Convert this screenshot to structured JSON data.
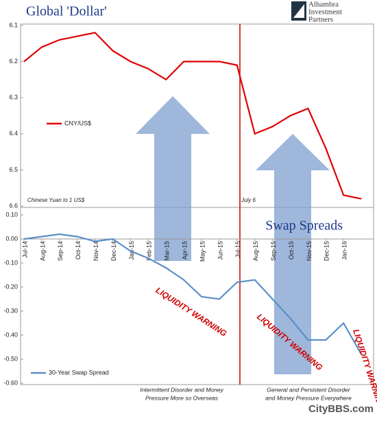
{
  "chart_data": [
    {
      "type": "line",
      "title": "Global 'Dollar'",
      "logo_text": [
        "Alhambra",
        "Investment",
        "Partners"
      ],
      "categories": [
        "Jul-14",
        "Aug-14",
        "Sep-14",
        "Oct-14",
        "Nov-14",
        "Dec-14",
        "Jan-15",
        "Feb-15",
        "Mar-15",
        "Apr-15",
        "May-15",
        "Jun-15",
        "Jul-15",
        "Aug-15",
        "Sep-15",
        "Oct-15",
        "Nov-15",
        "Dec-15",
        "Jan-16",
        null
      ],
      "series": [
        {
          "name": "CNY/US$",
          "color": "#e00000",
          "values": [
            6.2,
            6.16,
            6.14,
            6.13,
            6.12,
            6.17,
            6.2,
            6.22,
            6.25,
            6.2,
            6.2,
            6.2,
            6.21,
            6.4,
            6.38,
            6.35,
            6.33,
            6.44,
            6.57,
            6.58
          ]
        }
      ],
      "ylim": [
        6.1,
        6.6
      ],
      "yticks": [
        6.1,
        6.2,
        6.3,
        6.4,
        6.5,
        6.6
      ],
      "y_inverted": true,
      "annotations": [
        [
          "Chinese Yuan to 1 US$"
        ],
        [
          "July 6"
        ]
      ]
    },
    {
      "type": "line",
      "title": "Swap Spreads",
      "watermark": "CityBBS.com",
      "categories": [
        "Jul-14",
        "Aug-14",
        "Sep-14",
        "Oct-14",
        "Nov-14",
        "Dec-14",
        "Jan-15",
        "Feb-15",
        "Mar-15",
        "Apr-15",
        "May-15",
        "Jun-15",
        "Jul-15",
        "Aug-15",
        "Sep-15",
        "Oct-15",
        "Nov-15",
        "Dec-15",
        "Jan-16",
        null
      ],
      "series": [
        {
          "name": "30-Year Swap Spread",
          "color": "#5b8fc9",
          "values": [
            0.0,
            0.01,
            0.02,
            0.01,
            -0.01,
            0.0,
            -0.05,
            -0.08,
            -0.12,
            -0.17,
            -0.24,
            -0.25,
            -0.18,
            -0.17,
            -0.25,
            -0.33,
            -0.42,
            -0.42,
            -0.35,
            -0.48
          ]
        }
      ],
      "ylim": [
        -0.6,
        0.1
      ],
      "yticks": [
        {
          "value": 0.1,
          "label": "0.10"
        },
        {
          "value": 0,
          "label": "0.00"
        },
        {
          "value": -0.1,
          "label": "-0.10"
        },
        {
          "value": -0.2,
          "label": "-0.20"
        },
        {
          "value": -0.3,
          "label": "-0.30"
        },
        {
          "value": -0.4,
          "label": "-0.40"
        },
        {
          "value": -0.5,
          "label": "-0.50"
        },
        {
          "value": -0.6,
          "label": "-0.60"
        }
      ],
      "annotations": [
        [
          "LIQUIDITY WARNING"
        ],
        [
          "LIQUIDITY WARNING"
        ],
        [
          "LIQUIDITY WARNING"
        ],
        [
          "Intermittent Disorder and Money",
          "Pressure More so Overseas"
        ],
        [
          "General and Persistent Disorder",
          "and Money Pressure Everywhere"
        ]
      ]
    }
  ]
}
